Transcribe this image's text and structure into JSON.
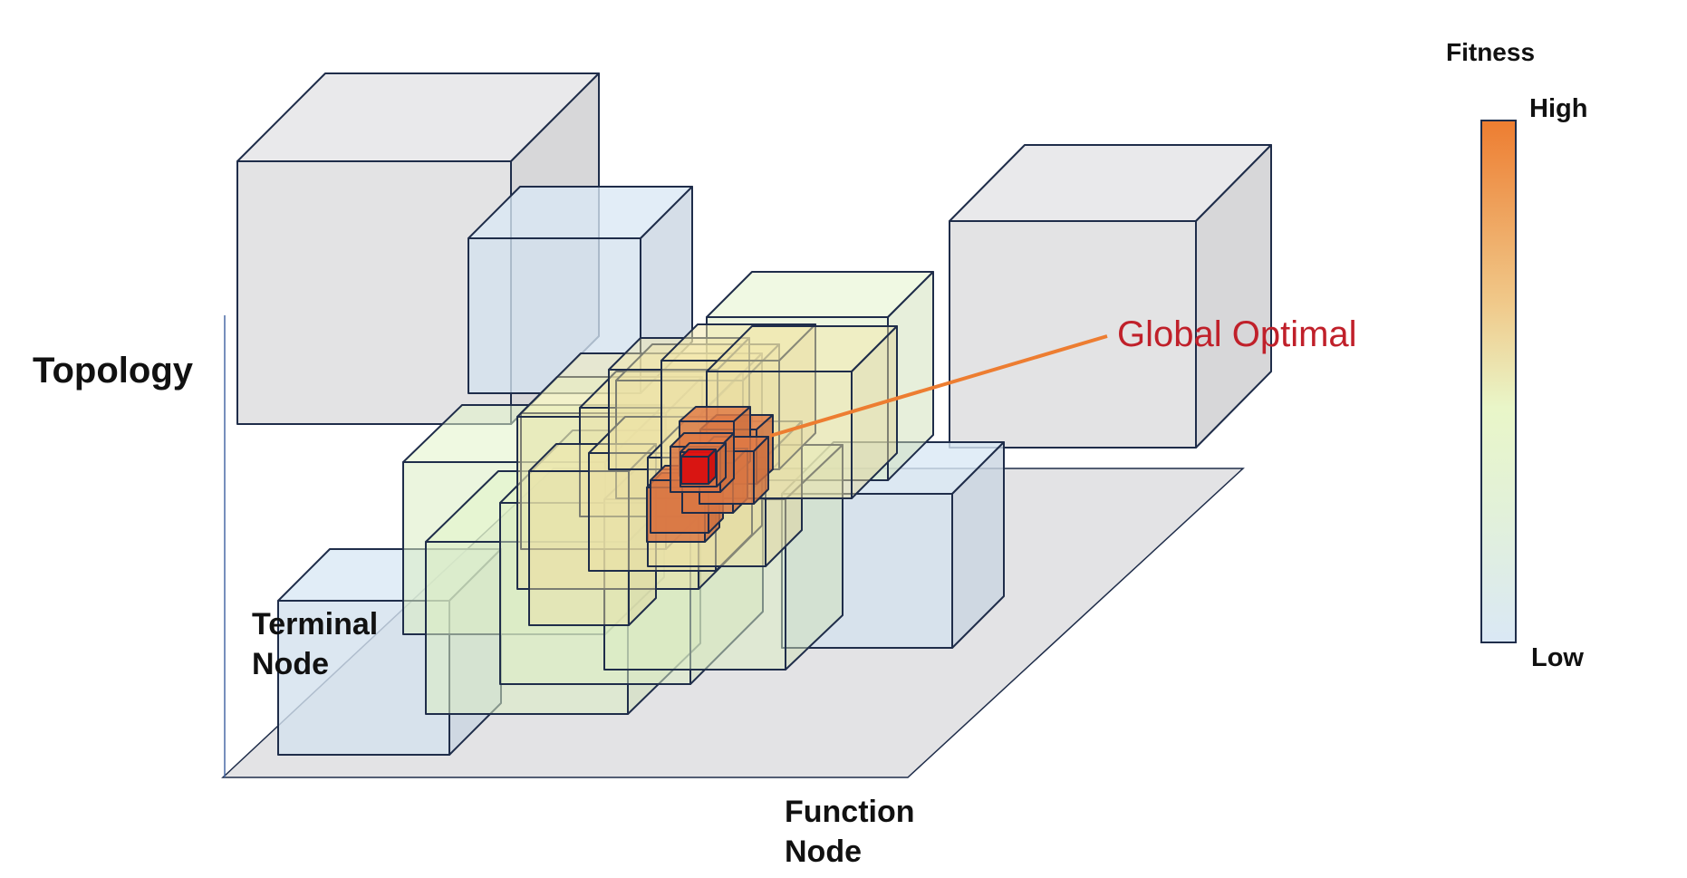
{
  "labels": {
    "topology": "Topology",
    "terminal_node": "Terminal\nNode",
    "function_node": "Function\nNode",
    "global_optimal": "Global Optimal"
  },
  "legend": {
    "title": "Fitness",
    "high": "High",
    "low": "Low",
    "gradient": [
      "#ed7d31",
      "#f0c98a",
      "#e9f6c8",
      "#e2f1d9",
      "#dae8f5"
    ]
  },
  "colors": {
    "edge": "#1f2d4a",
    "floor": "#e3e3e5",
    "grey_box": "#e8e8ea",
    "low": "#dae8f5",
    "mid_green": "#e2f4c8",
    "mid_yellow": "#f2e6a8",
    "high_orange": "#e07a45",
    "peak": "#e01010",
    "pointer": "#ed7d31",
    "global_text": "#c0202a"
  }
}
